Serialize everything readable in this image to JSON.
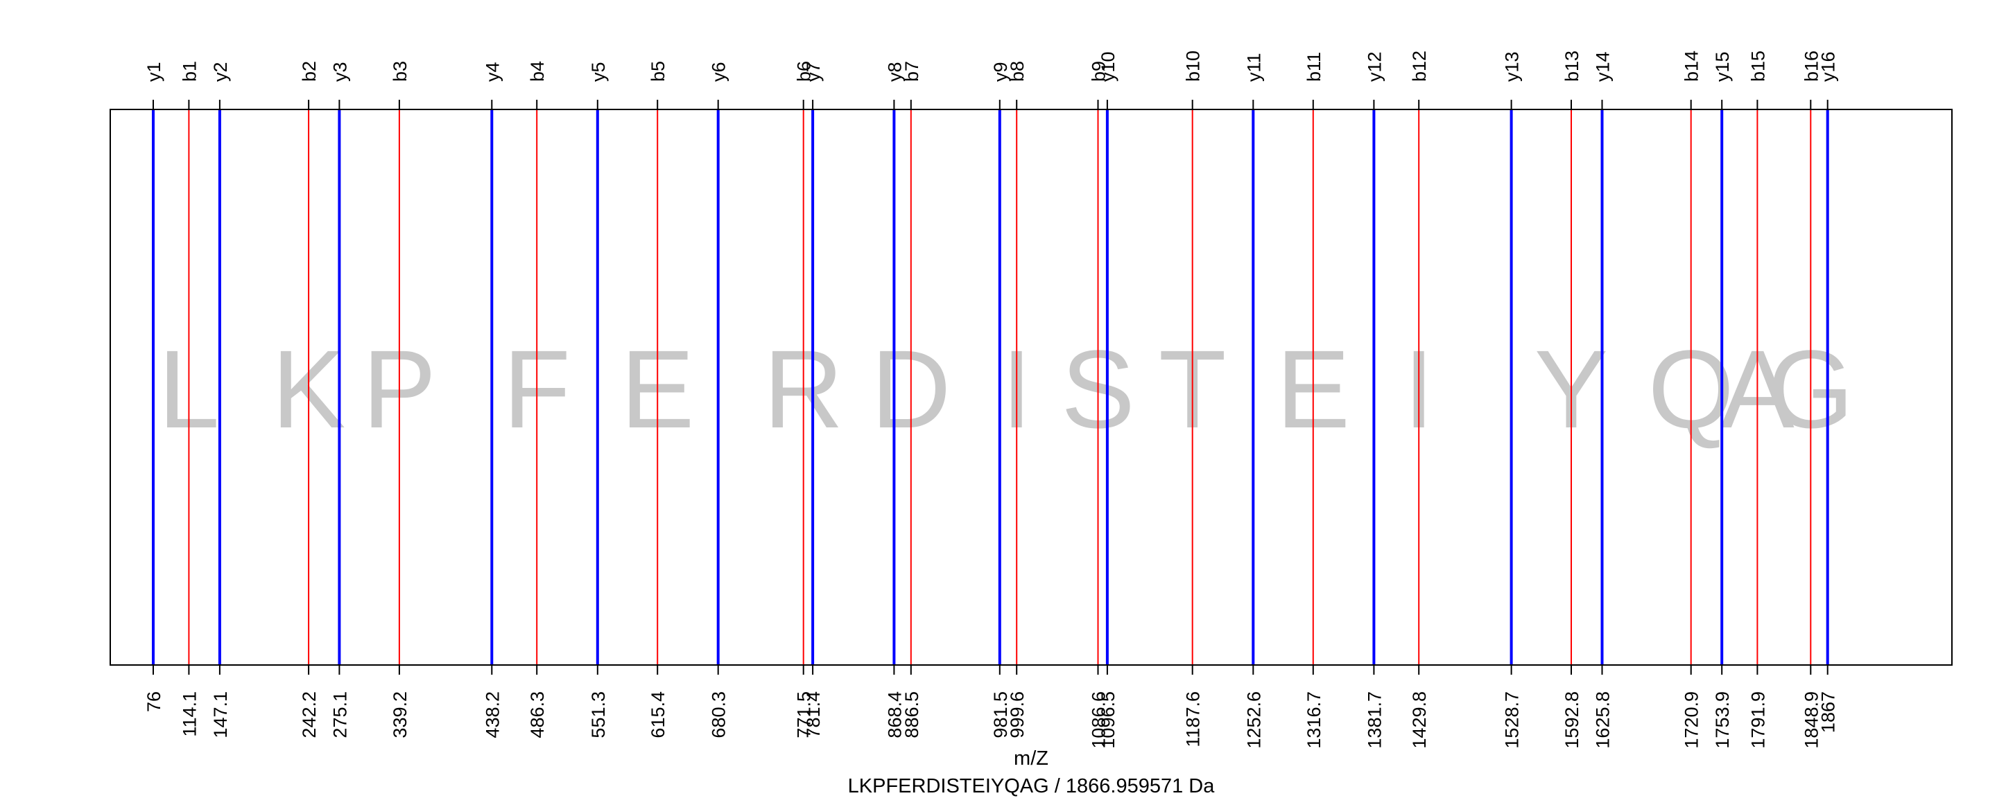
{
  "chart_data": {
    "type": "line",
    "xlabel": "m/Z",
    "title": "LKPFERDISTEIYQAG / 1866.959571 Da",
    "xlim": [
      30,
      2000
    ],
    "colors": {
      "b": "#ff0000",
      "y": "#0000ff",
      "residue": "#c8c8c8",
      "frame": "#000000"
    },
    "series": [
      {
        "name": "b",
        "values": [
          {
            "label": "b1",
            "x": 114.1
          },
          {
            "label": "b2",
            "x": 242.2
          },
          {
            "label": "b3",
            "x": 339.2
          },
          {
            "label": "b4",
            "x": 486.3
          },
          {
            "label": "b5",
            "x": 615.4
          },
          {
            "label": "b6",
            "x": 771.5
          },
          {
            "label": "b7",
            "x": 886.5
          },
          {
            "label": "b8",
            "x": 999.6
          },
          {
            "label": "b9",
            "x": 1086.6
          },
          {
            "label": "b10",
            "x": 1187.6
          },
          {
            "label": "b11",
            "x": 1316.7
          },
          {
            "label": "b12",
            "x": 1429.8
          },
          {
            "label": "b13",
            "x": 1592.8
          },
          {
            "label": "b14",
            "x": 1720.9
          },
          {
            "label": "b15",
            "x": 1791.9
          },
          {
            "label": "b16",
            "x": 1848.9
          }
        ]
      },
      {
        "name": "y",
        "values": [
          {
            "label": "y1",
            "x": 76
          },
          {
            "label": "y2",
            "x": 147.1
          },
          {
            "label": "y3",
            "x": 275.1
          },
          {
            "label": "y4",
            "x": 438.2
          },
          {
            "label": "y5",
            "x": 551.3
          },
          {
            "label": "y6",
            "x": 680.3
          },
          {
            "label": "y7",
            "x": 781.4
          },
          {
            "label": "y8",
            "x": 868.4
          },
          {
            "label": "y9",
            "x": 981.5
          },
          {
            "label": "y10",
            "x": 1096.5
          },
          {
            "label": "y11",
            "x": 1252.6
          },
          {
            "label": "y12",
            "x": 1381.7
          },
          {
            "label": "y13",
            "x": 1528.7
          },
          {
            "label": "y14",
            "x": 1625.8
          },
          {
            "label": "y15",
            "x": 1753.9
          },
          {
            "label": "y16",
            "x": 1867
          }
        ]
      }
    ],
    "residues": [
      {
        "letter": "L",
        "x": 114.1
      },
      {
        "letter": "K",
        "x": 242.2
      },
      {
        "letter": "P",
        "x": 339.2
      },
      {
        "letter": "F",
        "x": 486.3
      },
      {
        "letter": "E",
        "x": 615.4
      },
      {
        "letter": "R",
        "x": 771.5
      },
      {
        "letter": "D",
        "x": 886.5
      },
      {
        "letter": "I",
        "x": 999.6
      },
      {
        "letter": "S",
        "x": 1086.6
      },
      {
        "letter": "T",
        "x": 1187.6
      },
      {
        "letter": "E",
        "x": 1316.7
      },
      {
        "letter": "I",
        "x": 1429.8
      },
      {
        "letter": "Y",
        "x": 1592.8
      },
      {
        "letter": "Q",
        "x": 1720.9
      },
      {
        "letter": "A",
        "x": 1791.9
      },
      {
        "letter": "G",
        "x": 1848.9
      }
    ]
  }
}
